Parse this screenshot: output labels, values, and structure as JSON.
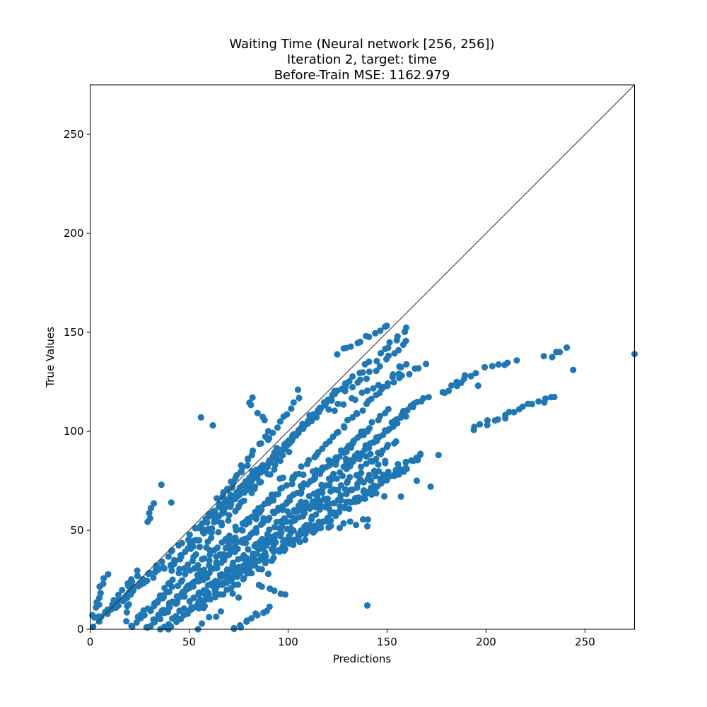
{
  "chart_data": {
    "type": "scatter",
    "title_lines": [
      "Waiting Time (Neural network [256, 256])",
      "Iteration 2, target: time",
      "Before-Train MSE: 1162.979"
    ],
    "xlabel": "Predictions",
    "ylabel": "True Values",
    "xlim": [
      0,
      275
    ],
    "ylim": [
      0,
      275
    ],
    "xticks": [
      0,
      50,
      100,
      150,
      200,
      250
    ],
    "yticks": [
      0,
      50,
      100,
      150,
      200,
      250
    ],
    "grid": false,
    "point_color": "#1f77b4",
    "reference_line": {
      "from": [
        0,
        0
      ],
      "to": [
        275,
        275
      ],
      "color": "#333333"
    },
    "segments": [
      {
        "x0": 0,
        "y0": 0,
        "x1": 160,
        "y1": 152,
        "n": 80
      },
      {
        "x0": 30,
        "y0": 2,
        "x1": 160,
        "y1": 135,
        "n": 80
      },
      {
        "x0": 28,
        "y0": 0,
        "x1": 150,
        "y1": 110,
        "n": 70
      },
      {
        "x0": 35,
        "y0": 0,
        "x1": 165,
        "y1": 115,
        "n": 70
      },
      {
        "x0": 40,
        "y0": 0,
        "x1": 170,
        "y1": 118,
        "n": 70
      },
      {
        "x0": 32,
        "y0": 5,
        "x1": 140,
        "y1": 100,
        "n": 60
      },
      {
        "x0": 45,
        "y0": 5,
        "x1": 150,
        "y1": 85,
        "n": 60
      },
      {
        "x0": 55,
        "y0": 10,
        "x1": 160,
        "y1": 82,
        "n": 55
      },
      {
        "x0": 60,
        "y0": 20,
        "x1": 155,
        "y1": 95,
        "n": 55
      },
      {
        "x0": 70,
        "y0": 25,
        "x1": 168,
        "y1": 88,
        "n": 55
      },
      {
        "x0": 20,
        "y0": 0,
        "x1": 100,
        "y1": 90,
        "n": 50
      },
      {
        "x0": 25,
        "y0": 5,
        "x1": 95,
        "y1": 70,
        "n": 45
      },
      {
        "x0": 40,
        "y0": 30,
        "x1": 105,
        "y1": 100,
        "n": 40
      },
      {
        "x0": 50,
        "y0": 40,
        "x1": 120,
        "y1": 115,
        "n": 40
      },
      {
        "x0": 60,
        "y0": 55,
        "x1": 130,
        "y1": 125,
        "n": 40
      },
      {
        "x0": 55,
        "y0": 50,
        "x1": 80,
        "y1": 85,
        "n": 18
      },
      {
        "x0": 65,
        "y0": 65,
        "x1": 90,
        "y1": 100,
        "n": 15
      },
      {
        "x0": 90,
        "y0": 95,
        "x1": 105,
        "y1": 116,
        "n": 10
      },
      {
        "x0": 125,
        "y0": 140,
        "x1": 150,
        "y1": 153,
        "n": 12
      },
      {
        "x0": 130,
        "y0": 120,
        "x1": 160,
        "y1": 145,
        "n": 14
      },
      {
        "x0": 120,
        "y0": 110,
        "x1": 170,
        "y1": 134,
        "n": 18
      },
      {
        "x0": 3,
        "y0": 5,
        "x1": 45,
        "y1": 37,
        "n": 25
      },
      {
        "x0": 10,
        "y0": 12,
        "x1": 25,
        "y1": 30,
        "n": 10
      },
      {
        "x0": 2,
        "y0": 8,
        "x1": 8,
        "y1": 28,
        "n": 10
      },
      {
        "x0": 18,
        "y0": 5,
        "x1": 22,
        "y1": 25,
        "n": 8
      },
      {
        "x0": 55,
        "y0": 0,
        "x1": 65,
        "y1": 10,
        "n": 5
      },
      {
        "x0": 72,
        "y0": 0,
        "x1": 90,
        "y1": 11,
        "n": 12
      },
      {
        "x0": 90,
        "y0": 45,
        "x1": 140,
        "y1": 55,
        "n": 18
      },
      {
        "x0": 100,
        "y0": 60,
        "x1": 148,
        "y1": 68,
        "n": 15
      },
      {
        "x0": 95,
        "y0": 75,
        "x1": 145,
        "y1": 90,
        "n": 16
      },
      {
        "x0": 85,
        "y0": 22,
        "x1": 98,
        "y1": 18,
        "n": 6
      },
      {
        "x0": 130,
        "y0": 70,
        "x1": 168,
        "y1": 88,
        "n": 14
      },
      {
        "x0": 80,
        "y0": 115,
        "x1": 88,
        "y1": 105,
        "n": 5
      },
      {
        "x0": 30,
        "y0": 55,
        "x1": 32,
        "y1": 63,
        "n": 5
      },
      {
        "x0": 178,
        "y0": 119,
        "x1": 195,
        "y1": 130,
        "n": 12
      },
      {
        "x0": 200,
        "y0": 132,
        "x1": 215,
        "y1": 136,
        "n": 6
      },
      {
        "x0": 193,
        "y0": 101,
        "x1": 235,
        "y1": 118,
        "n": 20
      },
      {
        "x0": 230,
        "y0": 137,
        "x1": 240,
        "y1": 142,
        "n": 5
      }
    ],
    "points": [
      [
        275,
        139
      ],
      [
        244,
        131
      ],
      [
        196,
        123
      ],
      [
        140,
        12
      ],
      [
        56,
        107
      ],
      [
        62,
        103
      ],
      [
        36,
        73
      ],
      [
        41,
        64
      ],
      [
        82,
        117
      ],
      [
        105,
        121
      ],
      [
        176,
        88
      ],
      [
        165,
        75
      ],
      [
        157,
        67
      ],
      [
        172,
        72
      ],
      [
        140,
        52
      ],
      [
        90,
        28
      ],
      [
        75,
        16
      ],
      [
        72,
        18
      ]
    ]
  }
}
